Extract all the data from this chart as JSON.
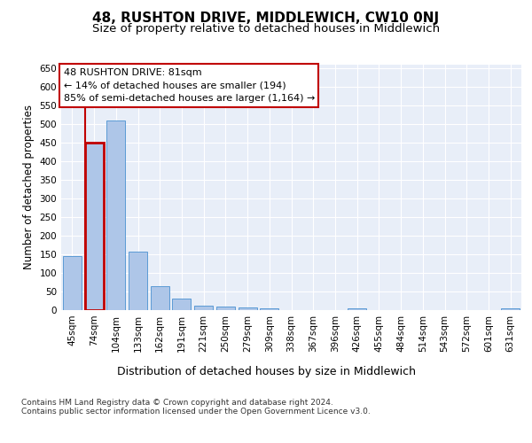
{
  "title": "48, RUSHTON DRIVE, MIDDLEWICH, CW10 0NJ",
  "subtitle": "Size of property relative to detached houses in Middlewich",
  "xlabel": "Distribution of detached houses by size in Middlewich",
  "ylabel": "Number of detached properties",
  "categories": [
    "45sqm",
    "74sqm",
    "104sqm",
    "133sqm",
    "162sqm",
    "191sqm",
    "221sqm",
    "250sqm",
    "279sqm",
    "309sqm",
    "338sqm",
    "367sqm",
    "396sqm",
    "426sqm",
    "455sqm",
    "484sqm",
    "514sqm",
    "543sqm",
    "572sqm",
    "601sqm",
    "631sqm"
  ],
  "values": [
    145,
    450,
    508,
    157,
    65,
    32,
    13,
    10,
    8,
    5,
    0,
    0,
    0,
    5,
    0,
    0,
    0,
    0,
    0,
    0,
    5
  ],
  "bar_color": "#aec6e8",
  "bar_edge_color": "#5b9bd5",
  "highlight_bar_index": 1,
  "highlight_color": "#c00000",
  "highlight_edge_color": "#c00000",
  "annotation_text": "48 RUSHTON DRIVE: 81sqm\n← 14% of detached houses are smaller (194)\n85% of semi-detached houses are larger (1,164) →",
  "annotation_box_color": "#ffffff",
  "annotation_box_edge_color": "#c00000",
  "ylim": [
    0,
    660
  ],
  "yticks": [
    0,
    50,
    100,
    150,
    200,
    250,
    300,
    350,
    400,
    450,
    500,
    550,
    600,
    650
  ],
  "plot_bg_color": "#e8eef8",
  "footer": "Contains HM Land Registry data © Crown copyright and database right 2024.\nContains public sector information licensed under the Open Government Licence v3.0.",
  "title_fontsize": 11,
  "subtitle_fontsize": 9.5,
  "xlabel_fontsize": 9,
  "ylabel_fontsize": 8.5,
  "tick_fontsize": 7.5,
  "footer_fontsize": 6.5,
  "annotation_fontsize": 8
}
